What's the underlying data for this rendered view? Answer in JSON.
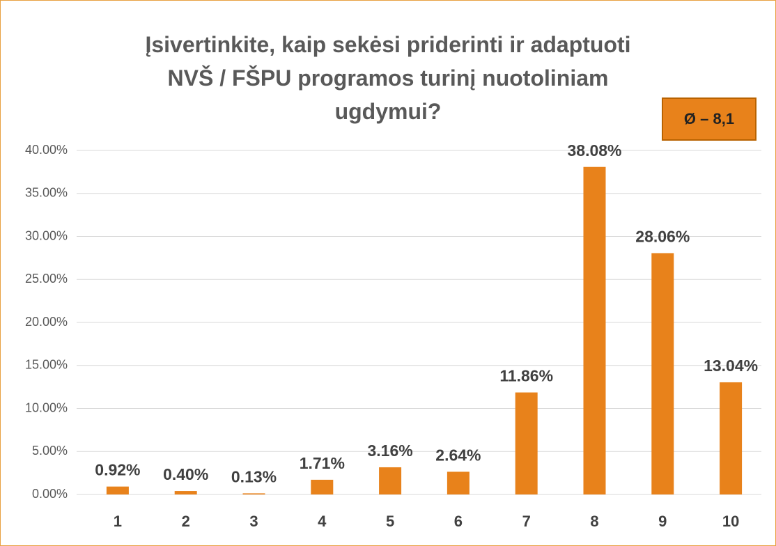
{
  "chart_data": {
    "type": "bar",
    "title": "Įsivertinkite, kaip sekėsi priderinti ir adaptuoti\nNVŠ / FŠPU programos turinį nuotoliniam\nugdymui?",
    "annotation": "Ø – 8,1",
    "categories": [
      "1",
      "2",
      "3",
      "4",
      "5",
      "6",
      "7",
      "8",
      "9",
      "10"
    ],
    "values": [
      0.92,
      0.4,
      0.13,
      1.71,
      3.16,
      2.64,
      11.86,
      38.08,
      28.06,
      13.04
    ],
    "value_labels": [
      "0.92%",
      "0.40%",
      "0.13%",
      "1.71%",
      "3.16%",
      "2.64%",
      "11.86%",
      "38.08%",
      "28.06%",
      "13.04%"
    ],
    "color": "#e8821b",
    "ylim": [
      0,
      40
    ],
    "yticks": [
      {
        "value": 0,
        "label": "0.00%"
      },
      {
        "value": 5,
        "label": "5.00%"
      },
      {
        "value": 10,
        "label": "10.00%"
      },
      {
        "value": 15,
        "label": "15.00%"
      },
      {
        "value": 20,
        "label": "20.00%"
      },
      {
        "value": 25,
        "label": "25.00%"
      },
      {
        "value": 30,
        "label": "30.00%"
      },
      {
        "value": 35,
        "label": "35.00%"
      },
      {
        "value": 40,
        "label": "40.00%"
      }
    ],
    "grid": true
  }
}
